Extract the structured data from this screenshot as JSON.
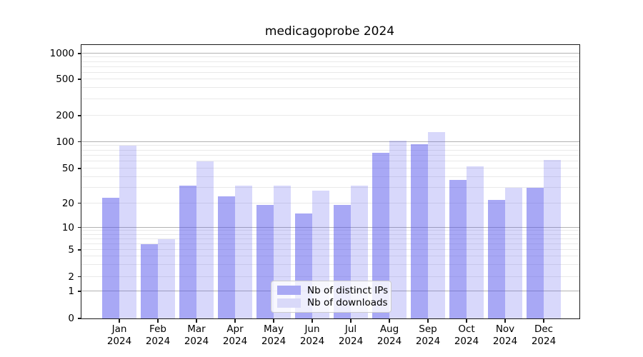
{
  "chart_data": {
    "type": "bar",
    "title": "medicagoprobe 2024",
    "categories": [
      "Jan 2024",
      "Feb 2024",
      "Mar 2024",
      "Apr 2024",
      "May 2024",
      "Jun 2024",
      "Jul 2024",
      "Aug 2024",
      "Sep 2024",
      "Oct 2024",
      "Nov 2024",
      "Dec 2024"
    ],
    "series": [
      {
        "name": "Nb of distinct IPs",
        "color": "#a8a8f4",
        "fill": "rgba(81,81,235,0.5)",
        "values": [
          23,
          6,
          32,
          24,
          19,
          15,
          19,
          76,
          95,
          37,
          22,
          30
        ]
      },
      {
        "name": "Nb of downloads",
        "color": "#d9d9f9",
        "fill": "rgba(81,81,235,0.225)",
        "values": [
          90,
          7,
          60,
          32,
          32,
          28,
          32,
          103,
          130,
          53,
          30,
          62
        ]
      }
    ],
    "xlabel": "",
    "ylabel": "",
    "yticks": [
      0,
      1,
      2,
      5,
      10,
      20,
      50,
      100,
      200,
      500,
      1000
    ],
    "yscale": "symlog-1-2-5",
    "ylim": [
      0,
      1250
    ],
    "grid": true,
    "grid_major_color": "#b2b2b2",
    "grid_minor_color": "#e9e9e9",
    "legend_position": "lower center"
  }
}
